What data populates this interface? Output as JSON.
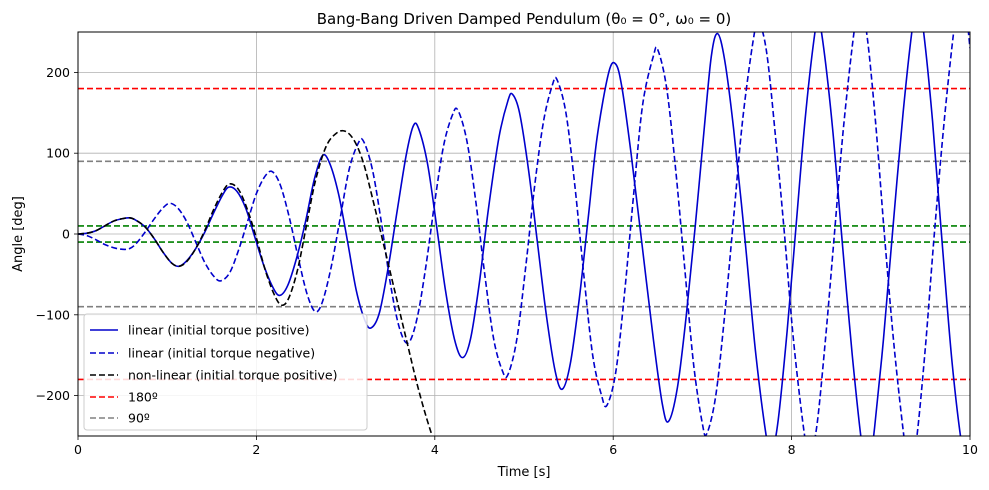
{
  "chart_data": {
    "type": "line",
    "title": "Bang-Bang Driven Damped Pendulum (θ₀ = 0°, ω₀ = 0)",
    "xlabel": "Time [s]",
    "ylabel": "Angle [deg]",
    "xlim": [
      0,
      10
    ],
    "ylim": [
      -250,
      250
    ],
    "xticks": [
      0,
      2,
      4,
      6,
      8,
      10
    ],
    "yticks": [
      -200,
      -100,
      0,
      100,
      200
    ],
    "grid": true,
    "legend_position": "lower-left",
    "series": [
      {
        "name": "linear (initial torque positive)",
        "color": "#0000cc",
        "dash": "solid",
        "points": [
          [
            0,
            0
          ],
          [
            0.1,
            1
          ],
          [
            0.2,
            4
          ],
          [
            0.3,
            10
          ],
          [
            0.4,
            16
          ],
          [
            0.5,
            19
          ],
          [
            0.58,
            20
          ],
          [
            0.65,
            17
          ],
          [
            0.75,
            9
          ],
          [
            0.85,
            -5
          ],
          [
            0.95,
            -22
          ],
          [
            1.05,
            -36
          ],
          [
            1.13,
            -40
          ],
          [
            1.22,
            -33
          ],
          [
            1.32,
            -18
          ],
          [
            1.42,
            2
          ],
          [
            1.52,
            26
          ],
          [
            1.62,
            48
          ],
          [
            1.69,
            58
          ],
          [
            1.78,
            53
          ],
          [
            1.88,
            32
          ],
          [
            1.98,
            -3
          ],
          [
            2.08,
            -38
          ],
          [
            2.18,
            -65
          ],
          [
            2.26,
            -76
          ],
          [
            2.35,
            -64
          ],
          [
            2.45,
            -30
          ],
          [
            2.55,
            15
          ],
          [
            2.65,
            68
          ],
          [
            2.74,
            97
          ],
          [
            2.82,
            88
          ],
          [
            2.92,
            50
          ],
          [
            3.02,
            -8
          ],
          [
            3.12,
            -70
          ],
          [
            3.22,
            -108
          ],
          [
            3.29,
            -116
          ],
          [
            3.38,
            -97
          ],
          [
            3.48,
            -40
          ],
          [
            3.58,
            30
          ],
          [
            3.68,
            98
          ],
          [
            3.76,
            134
          ],
          [
            3.82,
            130
          ],
          [
            3.92,
            86
          ],
          [
            4.02,
            10
          ],
          [
            4.12,
            -70
          ],
          [
            4.22,
            -130
          ],
          [
            4.31,
            -153
          ],
          [
            4.4,
            -130
          ],
          [
            4.5,
            -60
          ],
          [
            4.6,
            30
          ],
          [
            4.72,
            120
          ],
          [
            4.82,
            165
          ],
          [
            4.87,
            173
          ],
          [
            4.95,
            150
          ],
          [
            5.05,
            80
          ],
          [
            5.15,
            -10
          ],
          [
            5.25,
            -100
          ],
          [
            5.35,
            -170
          ],
          [
            5.43,
            -192
          ],
          [
            5.52,
            -160
          ],
          [
            5.62,
            -80
          ],
          [
            5.72,
            20
          ],
          [
            5.82,
            120
          ],
          [
            5.95,
            200
          ],
          [
            6.03,
            210
          ],
          [
            6.1,
            180
          ],
          [
            6.2,
            100
          ],
          [
            6.32,
            -10
          ],
          [
            6.45,
            -130
          ],
          [
            6.55,
            -210
          ],
          [
            6.62,
            -232
          ],
          [
            6.72,
            -190
          ],
          [
            6.82,
            -100
          ],
          [
            6.92,
            10
          ],
          [
            7.02,
            130
          ],
          [
            7.1,
            220
          ],
          [
            7.17,
            248
          ],
          [
            7.25,
            215
          ],
          [
            7.35,
            130
          ],
          [
            7.48,
            -10
          ],
          [
            7.6,
            -150
          ],
          [
            7.73,
            -260
          ],
          [
            7.78,
            -270
          ],
          [
            7.85,
            -230
          ],
          [
            7.95,
            -120
          ],
          [
            8.05,
            10
          ],
          [
            8.15,
            140
          ],
          [
            8.25,
            240
          ],
          [
            8.3,
            265
          ],
          [
            8.36,
            230
          ],
          [
            8.46,
            130
          ],
          [
            8.56,
            0
          ],
          [
            8.68,
            -150
          ],
          [
            8.8,
            -270
          ],
          [
            8.87,
            -285
          ],
          [
            8.93,
            -240
          ],
          [
            9.03,
            -130
          ],
          [
            9.13,
            0
          ],
          [
            9.25,
            150
          ],
          [
            9.36,
            260
          ],
          [
            9.42,
            285
          ],
          [
            9.48,
            250
          ],
          [
            9.58,
            140
          ],
          [
            9.68,
            0
          ],
          [
            9.8,
            -160
          ],
          [
            9.92,
            -270
          ],
          [
            10,
            -300
          ]
        ]
      },
      {
        "name": "linear (initial torque negative)",
        "color": "#0000cc",
        "dash": "dashed",
        "points": [
          [
            0,
            0
          ],
          [
            0.1,
            -2
          ],
          [
            0.2,
            -7
          ],
          [
            0.3,
            -13
          ],
          [
            0.4,
            -17
          ],
          [
            0.5,
            -19
          ],
          [
            0.58,
            -18
          ],
          [
            0.65,
            -12
          ],
          [
            0.75,
            2
          ],
          [
            0.85,
            18
          ],
          [
            0.95,
            32
          ],
          [
            1.03,
            38
          ],
          [
            1.12,
            32
          ],
          [
            1.22,
            15
          ],
          [
            1.32,
            -10
          ],
          [
            1.42,
            -35
          ],
          [
            1.52,
            -52
          ],
          [
            1.6,
            -58
          ],
          [
            1.7,
            -48
          ],
          [
            1.8,
            -20
          ],
          [
            1.9,
            15
          ],
          [
            2.0,
            50
          ],
          [
            2.1,
            72
          ],
          [
            2.18,
            77
          ],
          [
            2.27,
            60
          ],
          [
            2.37,
            20
          ],
          [
            2.47,
            -30
          ],
          [
            2.57,
            -75
          ],
          [
            2.66,
            -96
          ],
          [
            2.74,
            -84
          ],
          [
            2.84,
            -40
          ],
          [
            2.94,
            20
          ],
          [
            3.04,
            80
          ],
          [
            3.14,
            112
          ],
          [
            3.2,
            115
          ],
          [
            3.3,
            80
          ],
          [
            3.4,
            15
          ],
          [
            3.5,
            -60
          ],
          [
            3.6,
            -115
          ],
          [
            3.7,
            -135
          ],
          [
            3.8,
            -105
          ],
          [
            3.9,
            -40
          ],
          [
            4.0,
            40
          ],
          [
            4.1,
            110
          ],
          [
            4.2,
            148
          ],
          [
            4.26,
            153
          ],
          [
            4.36,
            115
          ],
          [
            4.46,
            40
          ],
          [
            4.56,
            -50
          ],
          [
            4.66,
            -130
          ],
          [
            4.76,
            -170
          ],
          [
            4.82,
            -174
          ],
          [
            4.92,
            -130
          ],
          [
            5.02,
            -40
          ],
          [
            5.12,
            60
          ],
          [
            5.22,
            140
          ],
          [
            5.32,
            185
          ],
          [
            5.37,
            191
          ],
          [
            5.47,
            150
          ],
          [
            5.57,
            60
          ],
          [
            5.67,
            -50
          ],
          [
            5.77,
            -150
          ],
          [
            5.87,
            -200
          ],
          [
            5.93,
            -212
          ],
          [
            6.03,
            -170
          ],
          [
            6.13,
            -70
          ],
          [
            6.23,
            50
          ],
          [
            6.33,
            160
          ],
          [
            6.45,
            220
          ],
          [
            6.5,
            228
          ],
          [
            6.6,
            180
          ],
          [
            6.7,
            80
          ],
          [
            6.8,
            -40
          ],
          [
            6.9,
            -160
          ],
          [
            7.0,
            -235
          ],
          [
            7.05,
            -247
          ],
          [
            7.15,
            -200
          ],
          [
            7.25,
            -100
          ],
          [
            7.35,
            20
          ],
          [
            7.45,
            140
          ],
          [
            7.57,
            240
          ],
          [
            7.63,
            262
          ],
          [
            7.72,
            225
          ],
          [
            7.82,
            120
          ],
          [
            7.92,
            0
          ],
          [
            8.02,
            -130
          ],
          [
            8.14,
            -245
          ],
          [
            8.2,
            -272
          ],
          [
            8.28,
            -240
          ],
          [
            8.38,
            -130
          ],
          [
            8.48,
            0
          ],
          [
            8.58,
            130
          ],
          [
            8.7,
            250
          ],
          [
            8.76,
            280
          ],
          [
            8.84,
            250
          ],
          [
            8.94,
            140
          ],
          [
            9.04,
            0
          ],
          [
            9.15,
            -140
          ],
          [
            9.27,
            -260
          ],
          [
            9.33,
            -290
          ],
          [
            9.4,
            -255
          ],
          [
            9.5,
            -140
          ],
          [
            9.6,
            0
          ],
          [
            9.72,
            150
          ],
          [
            9.84,
            270
          ],
          [
            9.9,
            295
          ],
          [
            9.96,
            270
          ],
          [
            10,
            230
          ]
        ]
      },
      {
        "name": "non-linear (initial torque positive)",
        "color": "#000000",
        "dash": "dashed",
        "points": [
          [
            0,
            0
          ],
          [
            0.1,
            1
          ],
          [
            0.2,
            4
          ],
          [
            0.3,
            10
          ],
          [
            0.4,
            16
          ],
          [
            0.5,
            19
          ],
          [
            0.58,
            20
          ],
          [
            0.65,
            17
          ],
          [
            0.75,
            9
          ],
          [
            0.85,
            -5
          ],
          [
            0.95,
            -22
          ],
          [
            1.05,
            -36
          ],
          [
            1.13,
            -40
          ],
          [
            1.22,
            -34
          ],
          [
            1.32,
            -18
          ],
          [
            1.42,
            4
          ],
          [
            1.52,
            30
          ],
          [
            1.62,
            52
          ],
          [
            1.7,
            62
          ],
          [
            1.8,
            55
          ],
          [
            1.9,
            30
          ],
          [
            2.0,
            -5
          ],
          [
            2.1,
            -45
          ],
          [
            2.2,
            -75
          ],
          [
            2.28,
            -88
          ],
          [
            2.36,
            -80
          ],
          [
            2.46,
            -45
          ],
          [
            2.56,
            10
          ],
          [
            2.66,
            65
          ],
          [
            2.78,
            108
          ],
          [
            2.9,
            125
          ],
          [
            3.0,
            127
          ],
          [
            3.1,
            115
          ],
          [
            3.2,
            88
          ],
          [
            3.3,
            45
          ],
          [
            3.42,
            -10
          ],
          [
            3.55,
            -70
          ],
          [
            3.68,
            -130
          ],
          [
            3.8,
            -185
          ],
          [
            3.9,
            -225
          ],
          [
            4.0,
            -260
          ]
        ]
      }
    ],
    "reference_lines": [
      {
        "label": "180º",
        "color": "#ff0000",
        "values": [
          180,
          -180
        ]
      },
      {
        "label": "90º",
        "color": "#808080",
        "values": [
          90,
          -90
        ]
      },
      {
        "label": "",
        "color": "#008000",
        "values": [
          10,
          -10
        ]
      }
    ]
  }
}
